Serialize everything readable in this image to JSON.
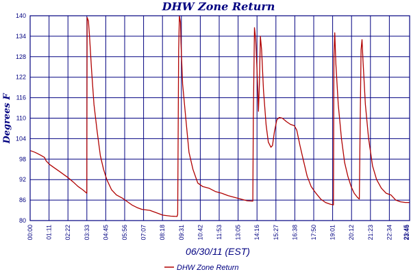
{
  "chart_data": {
    "type": "line",
    "title": "DHW Zone Return",
    "xlabel": "06/30/11 (EST)",
    "ylabel": "Degrees F",
    "ylim": [
      80,
      140
    ],
    "y_ticks": [
      "80",
      "86",
      "92",
      "98",
      "104",
      "110",
      "116",
      "122",
      "128",
      "134",
      "140"
    ],
    "x_ticks": [
      "00:00",
      "01:11",
      "02:22",
      "03:33",
      "04:45",
      "05:56",
      "07:07",
      "08:18",
      "09:31",
      "10:42",
      "11:53",
      "13:05",
      "14:16",
      "15:27",
      "16:38",
      "17:50",
      "19:01",
      "20:12",
      "21:23",
      "22:34",
      "23:45",
      "23:46"
    ],
    "xlim_hours": [
      0,
      23.77
    ],
    "grid": true,
    "legend_position": "bottom",
    "series": [
      {
        "name": "DHW Zone Return",
        "color": "#b00000",
        "points": [
          [
            0.0,
            100.5
          ],
          [
            0.3,
            100.0
          ],
          [
            0.6,
            99.3
          ],
          [
            0.9,
            98.5
          ],
          [
            1.0,
            97.5
          ],
          [
            1.2,
            96.5
          ],
          [
            1.5,
            95.5
          ],
          [
            1.8,
            94.5
          ],
          [
            2.1,
            93.5
          ],
          [
            2.4,
            92.5
          ],
          [
            2.7,
            91.3
          ],
          [
            3.0,
            90.0
          ],
          [
            3.3,
            89.0
          ],
          [
            3.55,
            88.0
          ],
          [
            3.57,
            139.5
          ],
          [
            3.65,
            138.5
          ],
          [
            3.72,
            134.0
          ],
          [
            3.85,
            124.0
          ],
          [
            4.0,
            114.0
          ],
          [
            4.2,
            106.0
          ],
          [
            4.4,
            99.0
          ],
          [
            4.6,
            95.0
          ],
          [
            4.8,
            92.0
          ],
          [
            5.1,
            89.0
          ],
          [
            5.4,
            87.5
          ],
          [
            5.8,
            86.5
          ],
          [
            6.1,
            85.5
          ],
          [
            6.4,
            84.5
          ],
          [
            6.7,
            83.8
          ],
          [
            7.0,
            83.3
          ],
          [
            7.5,
            83.0
          ],
          [
            7.9,
            82.3
          ],
          [
            8.3,
            81.6
          ],
          [
            8.8,
            81.3
          ],
          [
            9.2,
            81.2
          ],
          [
            9.24,
            81.8
          ],
          [
            9.3,
            130.0
          ],
          [
            9.35,
            140.0
          ],
          [
            9.42,
            138.0
          ],
          [
            9.45,
            132.0
          ],
          [
            9.55,
            120.0
          ],
          [
            9.75,
            110.0
          ],
          [
            9.95,
            100.0
          ],
          [
            10.2,
            95.0
          ],
          [
            10.5,
            91.0
          ],
          [
            10.8,
            90.0
          ],
          [
            11.2,
            89.5
          ],
          [
            11.6,
            88.5
          ],
          [
            12.0,
            88.0
          ],
          [
            12.4,
            87.3
          ],
          [
            12.8,
            86.8
          ],
          [
            13.2,
            86.3
          ],
          [
            13.6,
            85.8
          ],
          [
            13.95,
            85.7
          ],
          [
            13.98,
            110.0
          ],
          [
            14.05,
            136.5
          ],
          [
            14.13,
            133.0
          ],
          [
            14.2,
            125.0
          ],
          [
            14.26,
            118.0
          ],
          [
            14.3,
            112.0
          ],
          [
            14.36,
            120.0
          ],
          [
            14.42,
            134.0
          ],
          [
            14.5,
            130.0
          ],
          [
            14.62,
            118.0
          ],
          [
            14.78,
            108.0
          ],
          [
            14.92,
            103.0
          ],
          [
            15.08,
            101.5
          ],
          [
            15.18,
            102.0
          ],
          [
            15.3,
            106.0
          ],
          [
            15.45,
            109.5
          ],
          [
            15.6,
            110.2
          ],
          [
            15.8,
            110.0
          ],
          [
            16.05,
            109.0
          ],
          [
            16.3,
            108.2
          ],
          [
            16.55,
            107.8
          ],
          [
            16.7,
            106.5
          ],
          [
            16.9,
            102.0
          ],
          [
            17.1,
            98.0
          ],
          [
            17.35,
            93.0
          ],
          [
            17.6,
            90.0
          ],
          [
            17.9,
            88.0
          ],
          [
            18.2,
            86.3
          ],
          [
            18.5,
            85.3
          ],
          [
            18.8,
            84.8
          ],
          [
            19.0,
            84.6
          ],
          [
            19.03,
            128.0
          ],
          [
            19.08,
            135.0
          ],
          [
            19.15,
            126.0
          ],
          [
            19.3,
            114.0
          ],
          [
            19.5,
            104.0
          ],
          [
            19.7,
            97.0
          ],
          [
            19.9,
            93.0
          ],
          [
            20.1,
            90.0
          ],
          [
            20.3,
            88.0
          ],
          [
            20.5,
            86.8
          ],
          [
            20.62,
            86.3
          ],
          [
            20.66,
            103.0
          ],
          [
            20.73,
            130.0
          ],
          [
            20.79,
            133.0
          ],
          [
            20.85,
            127.0
          ],
          [
            21.0,
            114.0
          ],
          [
            21.2,
            104.0
          ],
          [
            21.45,
            96.0
          ],
          [
            21.7,
            92.0
          ],
          [
            22.0,
            89.5
          ],
          [
            22.3,
            88.0
          ],
          [
            22.6,
            87.5
          ],
          [
            22.9,
            86.0
          ],
          [
            23.2,
            85.5
          ],
          [
            23.5,
            85.3
          ],
          [
            23.77,
            85.3
          ]
        ]
      }
    ]
  }
}
